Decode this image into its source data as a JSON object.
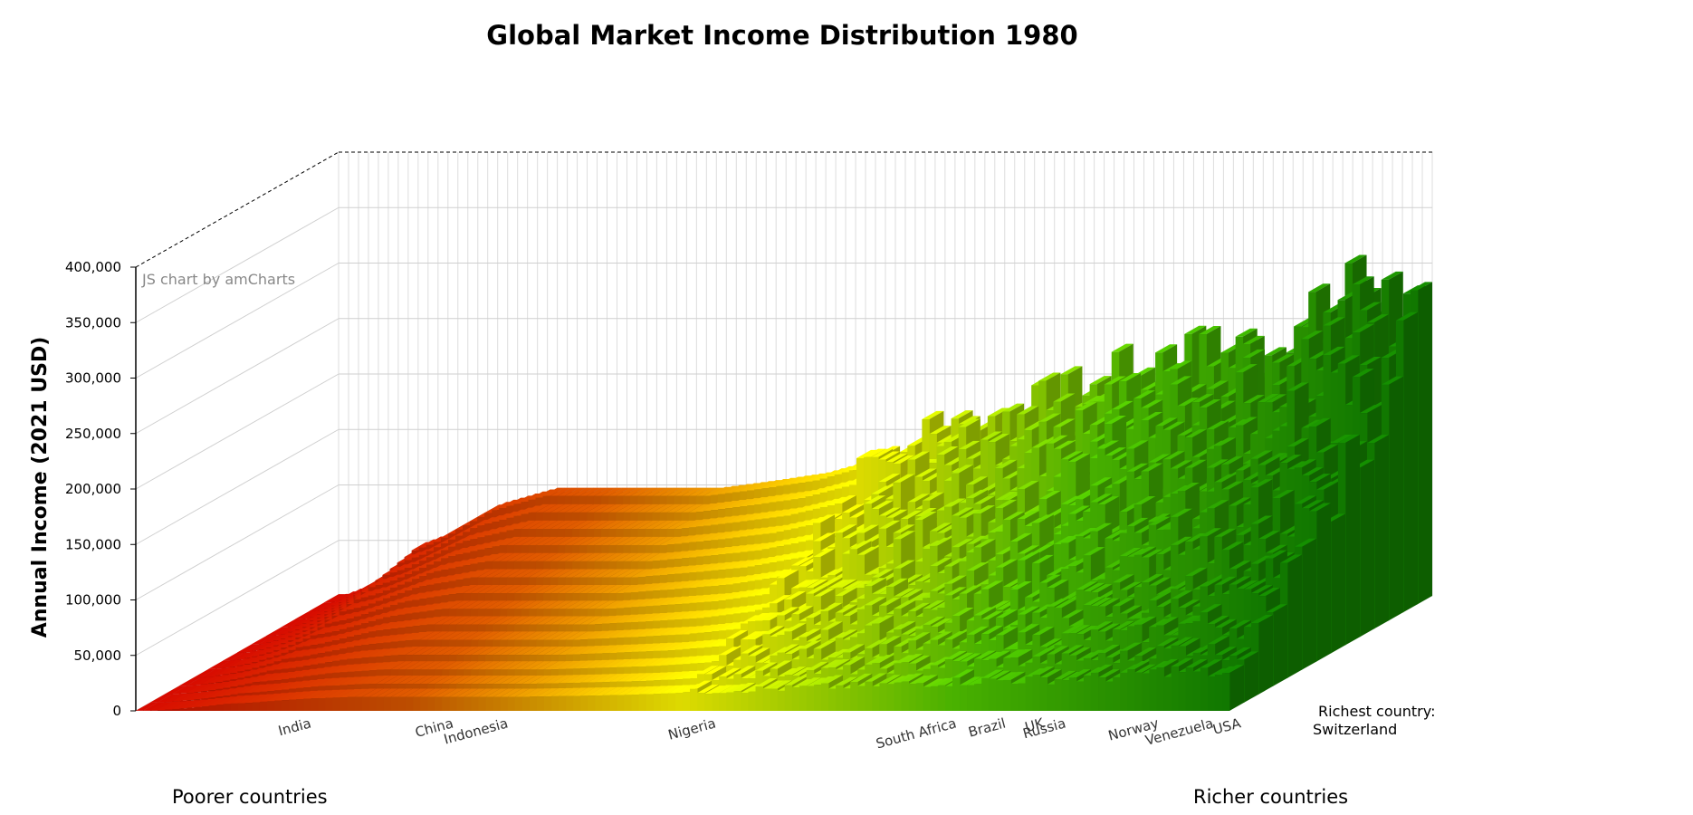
{
  "chart_data": {
    "type": "bar",
    "title": "Global Market Income Distribution 1980",
    "ylabel": "Annual Income (2021 USD)",
    "ylim": [
      0,
      400000
    ],
    "yticks": [
      "0",
      "50,000",
      "100,000",
      "150,000",
      "200,000",
      "250,000",
      "300,000",
      "350,000",
      "400,000"
    ],
    "grid": true,
    "view": "3d",
    "categories": [
      "India",
      "China",
      "Indonesia",
      "Nigeria",
      "South Africa",
      "Brazil",
      "UK",
      "Russia",
      "Norway",
      "Venezuela",
      "USA"
    ],
    "category_income_estimates": [
      25000,
      110000,
      100000,
      105000,
      150000,
      170000,
      165000,
      175000,
      215000,
      190000,
      240000
    ],
    "series_income_estimates": [
      20000,
      40000,
      60000,
      90000,
      105000,
      105000,
      105000,
      105000,
      112000,
      120000,
      135000,
      155000,
      165000,
      180000,
      195000,
      215000,
      225000,
      235000,
      250000,
      300000,
      265000
    ],
    "rows": 14,
    "color_scale": [
      "#c40a00",
      "#cc5500",
      "#f0ee00",
      "#4fc000",
      "#128200"
    ],
    "annotations": [
      "Poorer countries",
      "Richer countries",
      "Richest country:",
      "Switzerland"
    ],
    "credit": "JS chart by amCharts"
  }
}
